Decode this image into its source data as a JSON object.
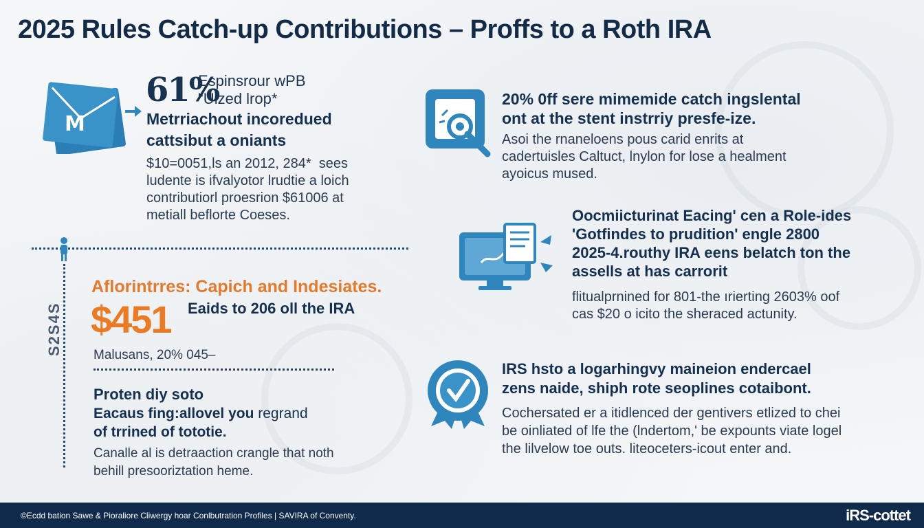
{
  "title": "2025 Rules Catch-up Contributions – Proffs to a Roth IRA",
  "section1": {
    "big": "61%",
    "tag": "Espinsrour wPB\n\"Uized lrop*",
    "heading": "Metrriachout incoredued\ncattsibut a oniants",
    "body": "$10=0051,ls an 2012, 284*  sees\nludente is ifvalyotor lrudtie a loich\ncontributiorl proesrion $61006 at\nmetiall beflorte Coeses."
  },
  "section2": {
    "heading": "20% 0ff sere mimemide catch ingslental\nont at the stent instrriy presfe-ize.",
    "body": "Asoi the rnaneloens pous carid enrits at\ncadertuisles Caltuct, lnylon for lose a healment\nayoicus mused."
  },
  "section3": {
    "side": "S2S4S",
    "orange": "Aflorintrres: Capich and Indesiates.",
    "money": "$451",
    "sub": "Eaids to 206 oll the IRA",
    "note": "Malusans, 20% 045–",
    "heading": "Proten diy soto",
    "heading2_a": "Eacaus fing:allovel you",
    "heading2_b": " regrand",
    "heading2_c": "of trrined of tototie.",
    "body": "Canalle al is detraaction crangle that noth\nbehill presooriztation heme."
  },
  "section4": {
    "heading": "Oocmiicturinat Eacing' cen a Role-ides\n'Gotfindes to prudition' engle 2800\n2025-4.routhy IRA eens belatch ton the\nassells at has carrorit",
    "body": "flitualprnined for 801-the ırierting 2603% oof\ncas $20 o icito the sheraced actunity."
  },
  "section5": {
    "heading": "IRS hsto a logarhingvy maineion endercael\nzens naide, shiph rote seoplines cotaibont.",
    "body": "Cochersated er a itidlenced der gentivers etlized to chei\nbe oinliated of lfe the (lndertom,' be expounts viate logel\nthe lilvelow toe outs. liteoceters-icout enter and."
  },
  "footer": {
    "text": "©Ecdd bation Sawe & Pioraliore Cliwergy hoar Conlbutration Profiles | SAVIRA of Conventy.",
    "logo": "iRS-cottet"
  },
  "colors": {
    "navy": "#14304e",
    "accent_blue": "#2f86bd",
    "orange": "#ea7a24",
    "footer": "#0f2a4a"
  },
  "icons": {
    "section1": "envelope-letter-icon",
    "section2": "search-document-icon",
    "section4": "monitor-documents-icon",
    "section5": "award-badge-check-icon"
  }
}
